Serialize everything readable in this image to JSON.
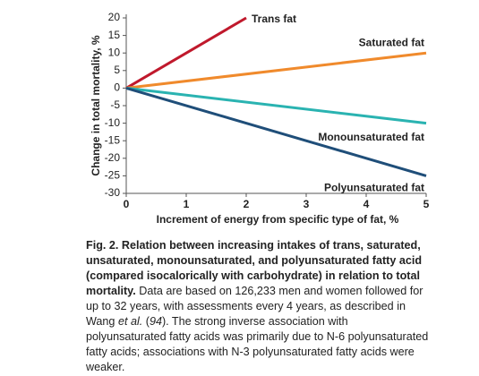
{
  "chart_data": {
    "type": "line",
    "y_label": "Change in total mortality, %",
    "x_label": "Increment of energy from specific type of fat, %",
    "xlim": [
      0,
      5
    ],
    "xticks": [
      0,
      1,
      2,
      3,
      4,
      5
    ],
    "ylim": [
      -30,
      20
    ],
    "yticks": [
      -30,
      -25,
      -20,
      -15,
      -10,
      -5,
      0,
      5,
      10,
      15,
      20
    ],
    "grid": false,
    "series": [
      {
        "name": "Trans fat",
        "color": "#c0192c",
        "x": [
          0,
          2
        ],
        "values": [
          0,
          20
        ]
      },
      {
        "name": "Saturated fat",
        "color": "#f08a2c",
        "x": [
          0,
          5
        ],
        "values": [
          0,
          10
        ]
      },
      {
        "name": "Monounsaturated fat",
        "color": "#2ab3b1",
        "x": [
          0,
          5
        ],
        "values": [
          0,
          -10
        ]
      },
      {
        "name": "Polyunsaturated fat",
        "color": "#1f4e79",
        "x": [
          0,
          5
        ],
        "values": [
          0,
          -25
        ]
      }
    ],
    "caption": [
      {
        "style": "bold",
        "text": "Fig. 2. Relation between increasing intakes of trans, saturated, unsaturated, monounsaturated, and polyunsaturated fatty acid (compared isocalorically with carbohydrate) in relation to total mortality."
      },
      {
        "style": "normal",
        "text": " Data are based on 126,233 men and women followed for up to 32 years, with assessments every 4 years, as described in Wang "
      },
      {
        "style": "italic",
        "text": "et al."
      },
      {
        "style": "normal",
        "text": " ("
      },
      {
        "style": "italic",
        "text": "94"
      },
      {
        "style": "normal",
        "text": "). The strong inverse association with polyunsaturated fatty acids was primarily due to N-6 polyunsaturated fatty acids; associations with N-3 polyunsaturated fatty acids were weaker."
      }
    ]
  }
}
